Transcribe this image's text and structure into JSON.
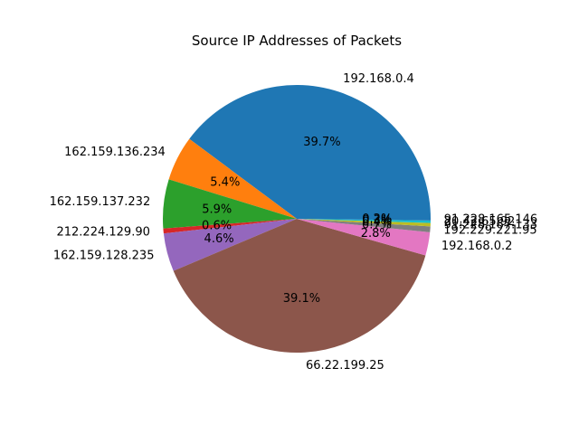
{
  "chart_data": {
    "type": "pie",
    "title": "Source IP Addresses of Packets",
    "slices": [
      {
        "label": "192.168.0.4",
        "value": 39.7,
        "percent_label": "39.7%",
        "color": "#1f77b4"
      },
      {
        "label": "162.159.136.234",
        "value": 5.4,
        "percent_label": "5.4%",
        "color": "#ff7f0e"
      },
      {
        "label": "162.159.137.232",
        "value": 5.9,
        "percent_label": "5.9%",
        "color": "#2ca02c"
      },
      {
        "label": "212.224.129.90",
        "value": 0.6,
        "percent_label": "0.6%",
        "color": "#d62728"
      },
      {
        "label": "162.159.128.235",
        "value": 4.6,
        "percent_label": "4.6%",
        "color": "#9467bd"
      },
      {
        "label": "66.22.199.25",
        "value": 39.1,
        "percent_label": "39.1%",
        "color": "#8c564b"
      },
      {
        "label": "192.168.0.2",
        "value": 2.8,
        "percent_label": "2.8%",
        "color": "#e377c2"
      },
      {
        "label": "192.229.221.95",
        "value": 0.7,
        "percent_label": "0.7%",
        "color": "#7f7f7f"
      },
      {
        "label": "91.228.167.133",
        "value": 0.4,
        "percent_label": "0.4%",
        "color": "#bcbd22"
      },
      {
        "label": "20.42.65.92",
        "value": 0.3,
        "percent_label": "0.3%",
        "color": "#17becf"
      },
      {
        "label": "91.228.165.146",
        "value": 0.2,
        "percent_label": "0.2%",
        "color": "#1f77b4"
      }
    ]
  }
}
